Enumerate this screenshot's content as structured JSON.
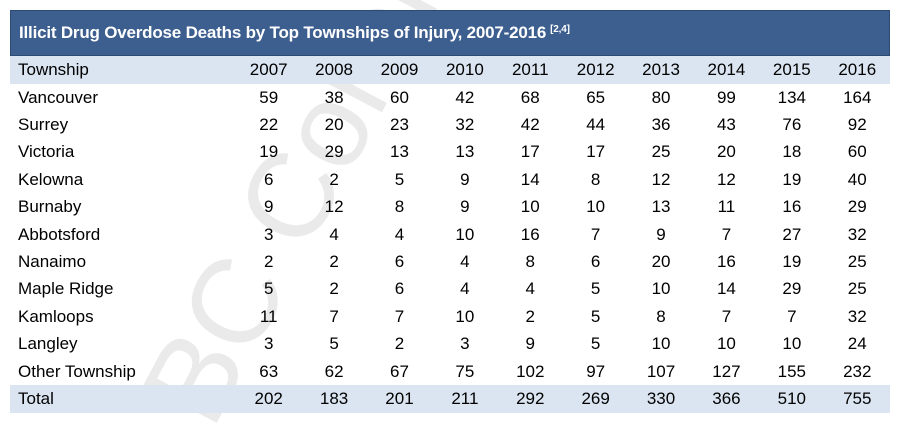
{
  "table": {
    "title": "Illicit Drug Overdose Deaths by Top Townships of Injury, 2007-2016",
    "title_ref": "[2,4]",
    "header": [
      "Township",
      "2007",
      "2008",
      "2009",
      "2010",
      "2011",
      "2012",
      "2013",
      "2014",
      "2015",
      "2016"
    ],
    "rows": [
      [
        "Vancouver",
        "59",
        "38",
        "60",
        "42",
        "68",
        "65",
        "80",
        "99",
        "134",
        "164"
      ],
      [
        "Surrey",
        "22",
        "20",
        "23",
        "32",
        "42",
        "44",
        "36",
        "43",
        "76",
        "92"
      ],
      [
        "Victoria",
        "19",
        "29",
        "13",
        "13",
        "17",
        "17",
        "25",
        "20",
        "18",
        "60"
      ],
      [
        "Kelowna",
        "6",
        "2",
        "5",
        "9",
        "14",
        "8",
        "12",
        "12",
        "19",
        "40"
      ],
      [
        "Burnaby",
        "9",
        "12",
        "8",
        "9",
        "10",
        "10",
        "13",
        "11",
        "16",
        "29"
      ],
      [
        "Abbotsford",
        "3",
        "4",
        "4",
        "10",
        "16",
        "7",
        "9",
        "7",
        "27",
        "32"
      ],
      [
        "Nanaimo",
        "2",
        "2",
        "6",
        "4",
        "8",
        "6",
        "20",
        "16",
        "19",
        "25"
      ],
      [
        "Maple Ridge",
        "5",
        "2",
        "6",
        "4",
        "4",
        "5",
        "10",
        "14",
        "29",
        "25"
      ],
      [
        "Kamloops",
        "11",
        "7",
        "7",
        "10",
        "2",
        "5",
        "8",
        "7",
        "7",
        "32"
      ],
      [
        "Langley",
        "3",
        "5",
        "2",
        "3",
        "9",
        "5",
        "10",
        "10",
        "10",
        "24"
      ],
      [
        "Other Township",
        "63",
        "62",
        "67",
        "75",
        "102",
        "97",
        "107",
        "127",
        "155",
        "232"
      ]
    ],
    "total": [
      "Total",
      "202",
      "183",
      "201",
      "211",
      "292",
      "269",
      "330",
      "366",
      "510",
      "755"
    ]
  },
  "watermark": "BC Coroners",
  "colors": {
    "title_bg": "#3d5f8f",
    "header_bg": "#dbe5f1",
    "total_bg": "#dbe5f1"
  }
}
